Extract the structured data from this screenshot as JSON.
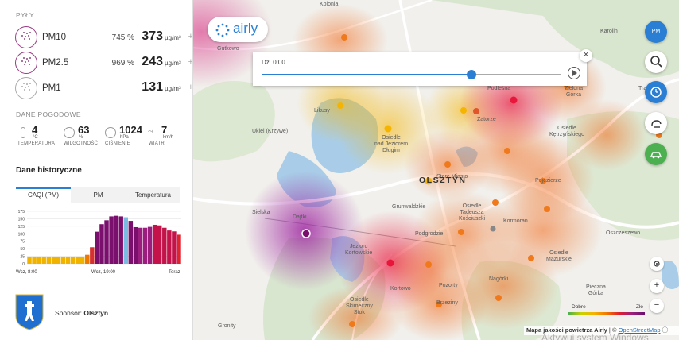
{
  "sidebar": {
    "pollutants_header": "PYŁY",
    "pollutants": [
      {
        "name": "PM10",
        "percent": "745 %",
        "value": "373",
        "unit": "µg/m³",
        "plus": "+",
        "icon": "particles-pm10-icon"
      },
      {
        "name": "PM2.5",
        "percent": "969 %",
        "value": "243",
        "unit": "µg/m³",
        "plus": "+",
        "icon": "particles-pm25-icon"
      },
      {
        "name": "PM1",
        "percent": "",
        "value": "131",
        "unit": "µg/m³",
        "plus": "+",
        "icon": "particles-pm1-icon"
      }
    ],
    "weather_header": "DANE POGODOWE",
    "weather": [
      {
        "value": "4",
        "unit": "°C",
        "label": "TEMPERATURA",
        "icon": "thermometer-icon"
      },
      {
        "value": "63",
        "unit": "%",
        "label": "WILGOTNOŚĆ",
        "icon": "humidity-icon"
      },
      {
        "value": "1024",
        "unit": "hPa",
        "label": "CIŚNIENIE",
        "icon": "pressure-gauge-icon"
      },
      {
        "value": "7",
        "unit": "km/h",
        "label": "WIATR",
        "icon": "wind-icon"
      }
    ],
    "history_title": "Dane historyczne",
    "tabs": [
      "CAQI (PM)",
      "PM",
      "Temperatura"
    ],
    "active_tab": 0,
    "x_labels": [
      "Wcz, 8:00",
      "Wcz, 19:00",
      "Teraz"
    ],
    "sponsor_label": "Sponsor:",
    "sponsor_name": "Olsztyn"
  },
  "chart_data": {
    "type": "bar",
    "title": "",
    "xlabel": "",
    "ylabel": "",
    "ylim": [
      0,
      175
    ],
    "yticks": [
      0,
      25,
      50,
      75,
      100,
      125,
      150,
      175
    ],
    "x_tick_labels": [
      "Wcz, 8:00",
      "Wcz, 19:00",
      "Teraz"
    ],
    "values": [
      24,
      24,
      24,
      24,
      24,
      24,
      24,
      24,
      24,
      24,
      24,
      24,
      30,
      55,
      107,
      132,
      145,
      158,
      160,
      158,
      155,
      143,
      122,
      120,
      120,
      123,
      130,
      128,
      120,
      111,
      108,
      97
    ],
    "colors": [
      "#f0b400",
      "#f0b400",
      "#f0b400",
      "#f0b400",
      "#f0b400",
      "#f0b400",
      "#f0b400",
      "#f0b400",
      "#f0b400",
      "#f0b400",
      "#f0b400",
      "#f0b400",
      "#f07800",
      "#d63030",
      "#7a0f6e",
      "#7a0f6e",
      "#7a0f6e",
      "#7a0f6e",
      "#7a0f6e",
      "#7a0f6e",
      "#7bbbe2",
      "#7a0f6e",
      "#7a0f6e",
      "#9b1e7e",
      "#9b1e7e",
      "#9b1e7e",
      "#c4134a",
      "#c4134a",
      "#c4134a",
      "#c4134a",
      "#c4134a",
      "#e0242e"
    ],
    "grid": true
  },
  "map": {
    "logo": "airly",
    "time_label": "Dz. 0:00",
    "slider_fraction": 0.7,
    "close_label": "×",
    "pm_button_label": "PM",
    "city_label": "OLSZTYN",
    "places": [
      {
        "name": "Gutkowo"
      },
      {
        "name": "Likusy"
      },
      {
        "name": "Osiedle\nnad Jeziorem\nDługim"
      },
      {
        "name": "Ukiel (Krzywe)"
      },
      {
        "name": "Stare Miasto"
      },
      {
        "name": "Osiedle\nKętrzyńskiego"
      },
      {
        "name": "Zatorze"
      },
      {
        "name": "Podleśna"
      },
      {
        "name": "Pojezierze"
      },
      {
        "name": "Zielona\nGórka"
      },
      {
        "name": "Karolin"
      },
      {
        "name": "Track"
      },
      {
        "name": "Dajtki"
      },
      {
        "name": "Sielska"
      },
      {
        "name": "Grunwaldzkie"
      },
      {
        "name": "Osiedle\nTadeusza\nKościuszki"
      },
      {
        "name": "Kormoran"
      },
      {
        "name": "Podgrodzie"
      },
      {
        "name": "Jezioro\nKortowskie"
      },
      {
        "name": "Kortowo"
      },
      {
        "name": "Osiedle\nMazurskie"
      },
      {
        "name": "Pozorty"
      },
      {
        "name": "Nagórki"
      },
      {
        "name": "Brzeziny"
      },
      {
        "name": "Osiedle\nSkimeczny\nStok"
      },
      {
        "name": "Pieczna\nGórka"
      },
      {
        "name": "Gronity"
      },
      {
        "name": "Oszczeszewo"
      },
      {
        "name": "Kolonia"
      }
    ],
    "legend_good": "Dobre",
    "legend_bad": "Złe",
    "attribution_prefix": "Mapa jakości powietrza Airly",
    "attribution_sep": " | © ",
    "attribution_link": "OpenStreetMap",
    "attribution_info": "ⓘ",
    "zoom_in": "+",
    "zoom_out": "−",
    "watermark": "Aktywuj system Windows"
  }
}
